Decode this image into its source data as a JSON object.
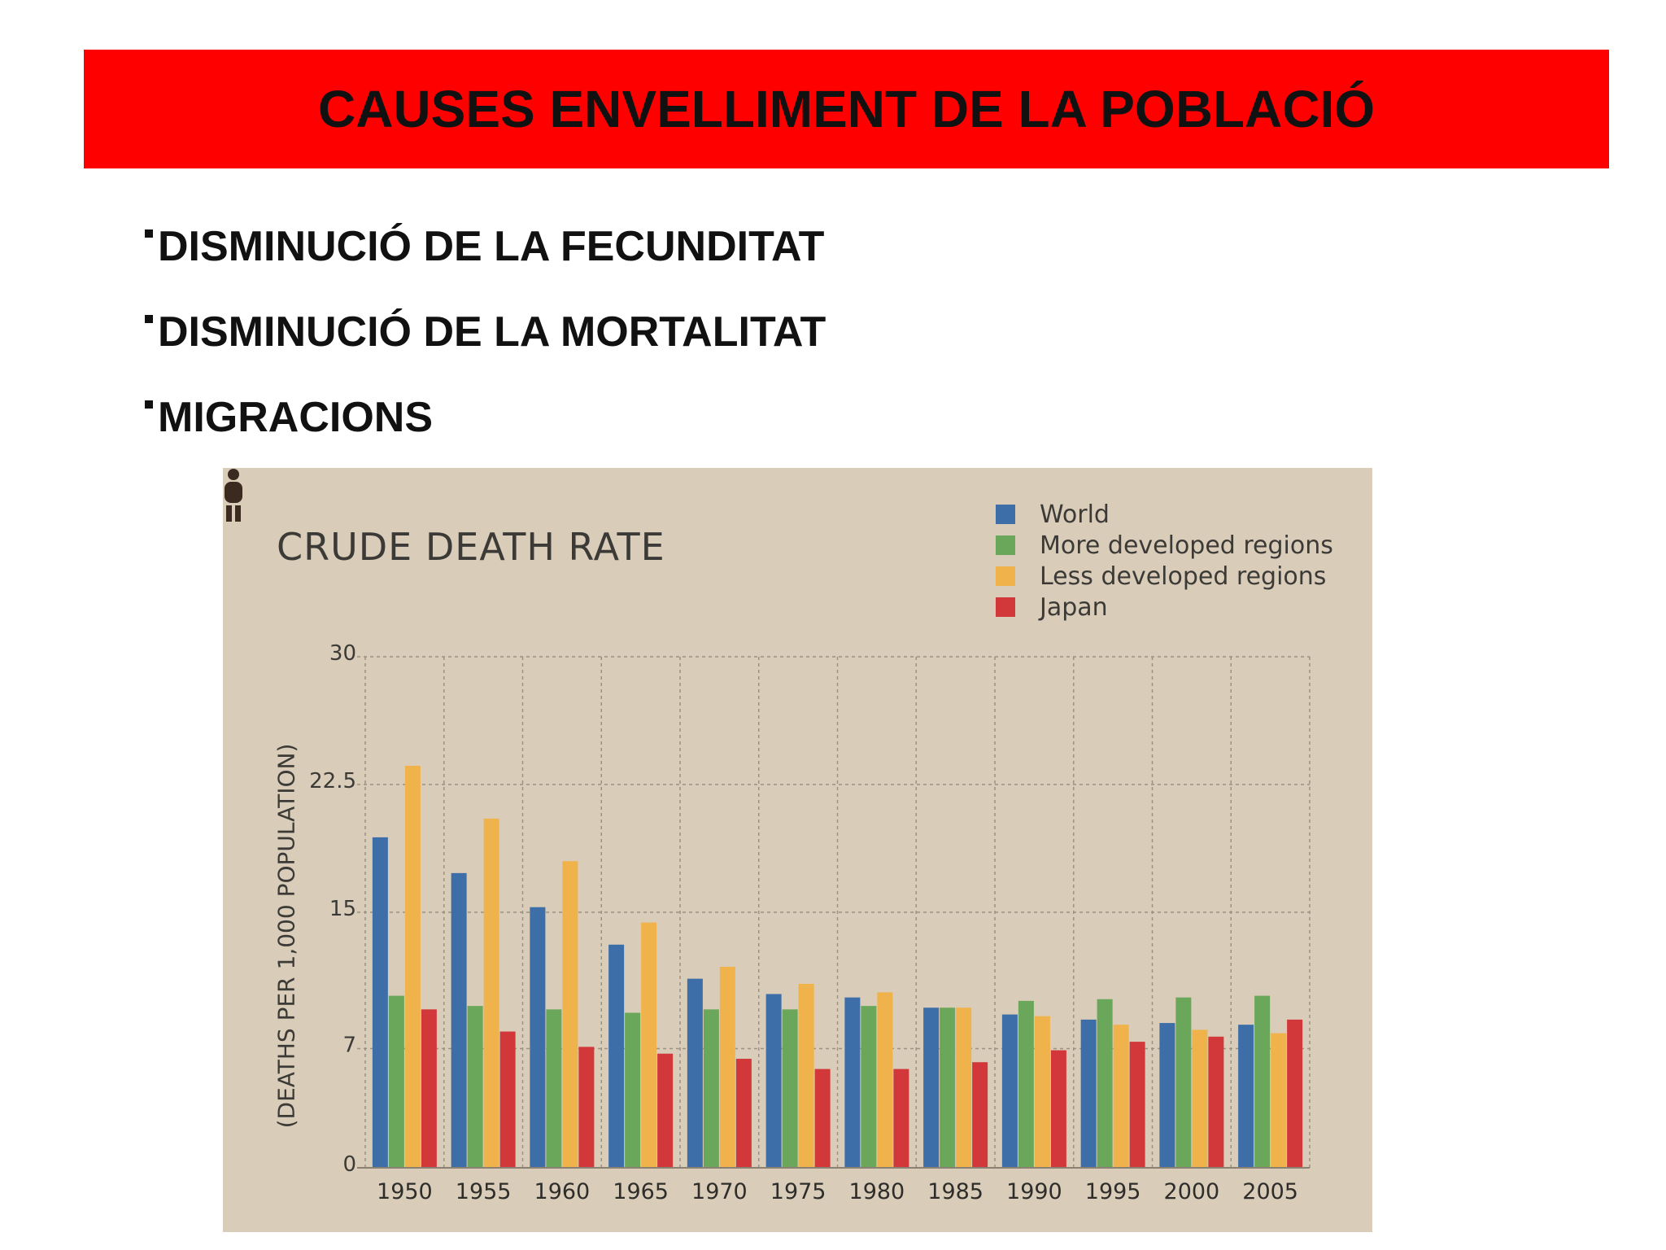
{
  "slide": {
    "title": "CAUSES ENVELLIMENT DE LA POBLACIÓ",
    "bullets": [
      "DISMINUCIÓ DE LA FECUNDITAT",
      "DISMINUCIÓ DE LA MORTALITAT",
      "MIGRACIONS"
    ],
    "title_bar_color": "#ff0000"
  },
  "chart_data": {
    "type": "bar",
    "title": "CRUDE DEATH RATE",
    "xlabel": "",
    "ylabel": "(DEATHS PER 1,000 POPULATION)",
    "ylim": [
      0,
      30
    ],
    "yticks": [
      0,
      7,
      15,
      22.5,
      30
    ],
    "ytick_labels": [
      "0",
      "7",
      "15",
      "22.5",
      "30"
    ],
    "grid": true,
    "legend_position": "top-right",
    "categories": [
      "1950",
      "1955",
      "1960",
      "1965",
      "1970",
      "1975",
      "1980",
      "1985",
      "1990",
      "1995",
      "2000",
      "2005"
    ],
    "series": [
      {
        "name": "World",
        "color": "#3d6ea8",
        "values": [
          19.4,
          17.3,
          15.3,
          13.1,
          11.1,
          10.2,
          10.0,
          9.4,
          9.0,
          8.7,
          8.5,
          8.4
        ]
      },
      {
        "name": "More developed regions",
        "color": "#6aa75a",
        "values": [
          10.1,
          9.5,
          9.3,
          9.1,
          9.3,
          9.3,
          9.5,
          9.4,
          9.8,
          9.9,
          10.0,
          10.1
        ]
      },
      {
        "name": "Less developed regions",
        "color": "#f0b24a",
        "values": [
          23.6,
          20.5,
          18.0,
          14.4,
          11.8,
          10.8,
          10.3,
          9.4,
          8.9,
          8.4,
          8.1,
          7.9
        ]
      },
      {
        "name": "Japan",
        "color": "#d2383a",
        "values": [
          9.3,
          8.0,
          7.1,
          6.7,
          6.4,
          5.8,
          5.8,
          6.2,
          6.9,
          7.4,
          7.7,
          8.7
        ]
      }
    ],
    "background_color": "#d9cdb9"
  }
}
